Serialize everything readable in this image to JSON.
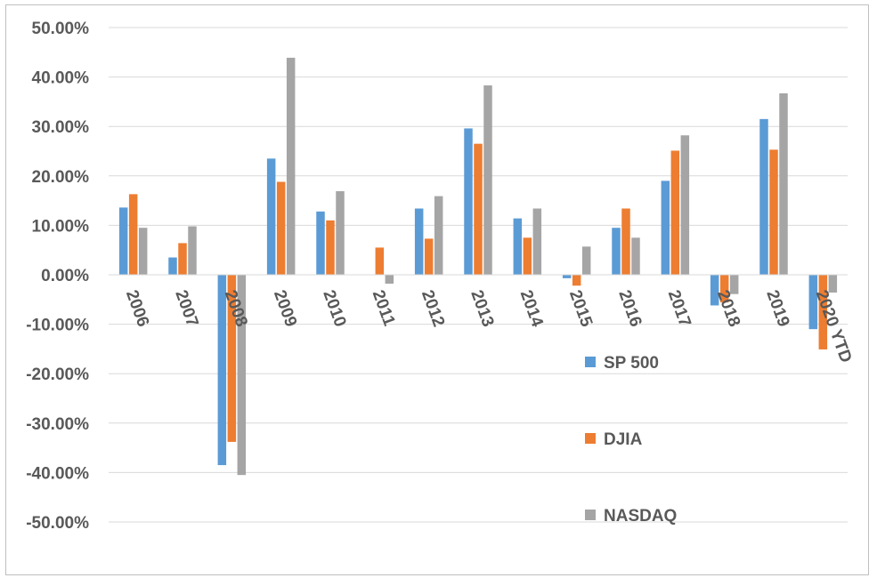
{
  "chart_data": {
    "type": "bar",
    "title": "",
    "xlabel": "",
    "ylabel": "",
    "categories": [
      "2006",
      "2007",
      "2008",
      "2009",
      "2010",
      "2011",
      "2012",
      "2013",
      "2014",
      "2015",
      "2016",
      "2017",
      "2018",
      "2019",
      "2020 YTD"
    ],
    "series": [
      {
        "name": "SP 500",
        "color": "#5b9bd5",
        "values": [
          13.6,
          3.5,
          -38.5,
          23.5,
          12.8,
          0.0,
          13.4,
          29.6,
          11.4,
          -0.7,
          9.5,
          19.0,
          -6.2,
          31.5,
          -11.0
        ]
      },
      {
        "name": "DJIA",
        "color": "#ed7d31",
        "values": [
          16.3,
          6.4,
          -33.8,
          18.8,
          11.0,
          5.5,
          7.3,
          26.5,
          7.5,
          -2.2,
          13.4,
          25.1,
          -5.6,
          25.3,
          -15.1
        ]
      },
      {
        "name": "NASDAQ",
        "color": "#a5a5a5",
        "values": [
          9.5,
          9.8,
          -40.5,
          43.9,
          16.9,
          -1.8,
          15.9,
          38.3,
          13.4,
          5.7,
          7.5,
          28.2,
          -3.9,
          36.7,
          -3.6
        ]
      }
    ],
    "ylim": [
      -50,
      50
    ],
    "yticks": [
      50,
      40,
      30,
      20,
      10,
      0,
      -10,
      -20,
      -30,
      -40,
      -50
    ],
    "ytick_labels": [
      "50.00%",
      "40.00%",
      "30.00%",
      "20.00%",
      "10.00%",
      "0.00%",
      "-10.00%",
      "-20.00%",
      "-30.00%",
      "-40.00%",
      "-50.00%"
    ],
    "grid": true,
    "legend_position": "right"
  }
}
